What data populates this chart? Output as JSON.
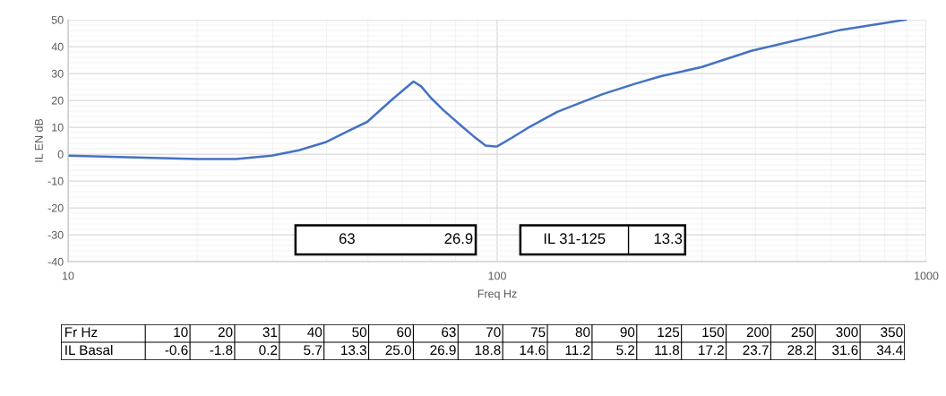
{
  "chart_data": [
    {
      "type": "line",
      "xlabel": "Freq Hz",
      "ylabel": "IL EN dB",
      "log": "x",
      "x": [
        10,
        20,
        24.6,
        29.8,
        34.5,
        39.8,
        45,
        49.8,
        57,
        60,
        63.8,
        66.5,
        70,
        75,
        81.8,
        88,
        94,
        98.9,
        100,
        108,
        117.5,
        138,
        176,
        210,
        241,
        300,
        391,
        631,
        896
      ],
      "series": [
        {
          "color": "#4472c4",
          "values": [
            -0.6,
            -1.8,
            -1.8,
            -0.6,
            1.4,
            4.4,
            8.6,
            12,
            20.4,
            23.4,
            27,
            25.2,
            21,
            16.3,
            11,
            6.7,
            3.2,
            2.8,
            2.9,
            6,
            9.6,
            15.7,
            22.3,
            26.2,
            29,
            32.4,
            38.4,
            46.2,
            50
          ]
        }
      ],
      "xlim": [
        10,
        1000
      ],
      "xticks": [
        10,
        100,
        1000
      ],
      "ylim": [
        -40,
        50
      ],
      "yticks": [
        -40,
        -30,
        -20,
        -10,
        0,
        10,
        20,
        30,
        40,
        50
      ],
      "grid": true,
      "marker": "none",
      "line_style": "solid",
      "annotations": [
        "63",
        "26.9",
        "IL 31-125",
        "13.3"
      ]
    },
    {
      "type": "other",
      "xlabel": "Fr Hz",
      "ylabel": "IL Basal",
      "categories": [
        "10",
        "20",
        "31",
        "40",
        "50",
        "60",
        "63",
        "70",
        "75",
        "80",
        "90",
        "125",
        "150",
        "200",
        "250",
        "300",
        "350"
      ],
      "value_labels": [
        "-0.6",
        "-1.8",
        "0.2",
        "5.7",
        "13.3",
        "25.0",
        "26.9",
        "18.8",
        "14.6",
        "11.2",
        "5.2",
        "11.8",
        "17.2",
        "23.7",
        "28.2",
        "31.6",
        "34.4"
      ]
    }
  ]
}
